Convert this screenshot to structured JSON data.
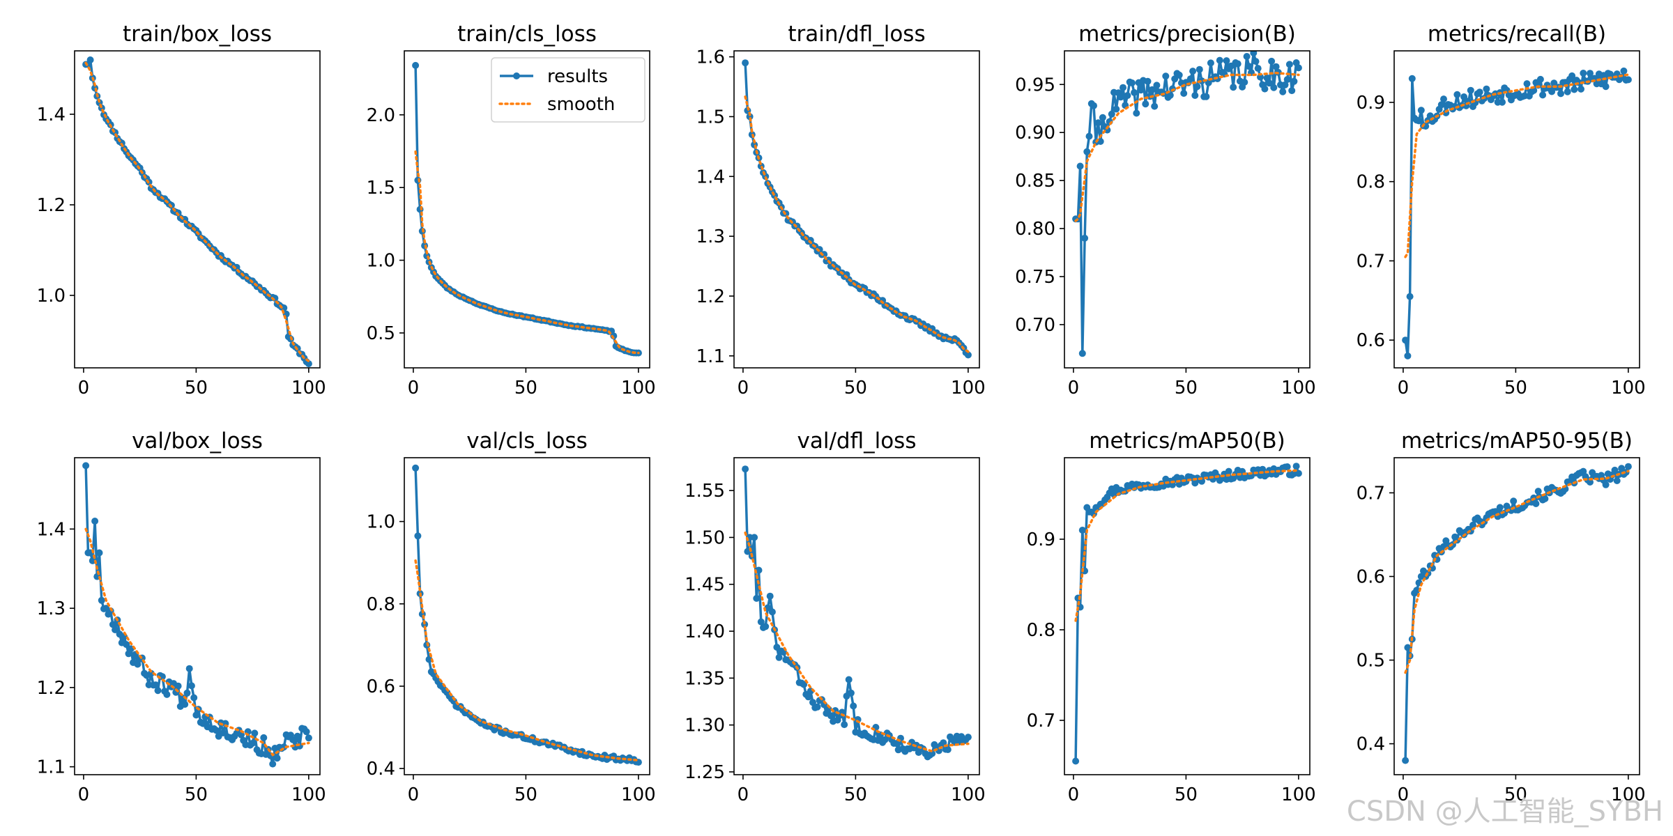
{
  "watermark": "CSDN @人工智能_SYBH",
  "colors": {
    "results": "#1f77b4",
    "smooth": "#ff7f0e"
  },
  "legend": {
    "results": "results",
    "smooth": "smooth",
    "location": "upper-right",
    "panel": 1
  },
  "chart_data": [
    {
      "type": "line",
      "title": "train/box_loss",
      "xlim": [
        -4,
        105
      ],
      "ylim": [
        0.84,
        1.54
      ],
      "xticks": [
        0,
        50,
        100
      ],
      "yticks": [
        1.0,
        1.2,
        1.4
      ],
      "anchors": [
        [
          1,
          1.51
        ],
        [
          2,
          1.51
        ],
        [
          3,
          1.52
        ],
        [
          4,
          1.48
        ],
        [
          6,
          1.44
        ],
        [
          10,
          1.39
        ],
        [
          15,
          1.35
        ],
        [
          20,
          1.31
        ],
        [
          25,
          1.28
        ],
        [
          30,
          1.24
        ],
        [
          40,
          1.19
        ],
        [
          50,
          1.14
        ],
        [
          60,
          1.09
        ],
        [
          70,
          1.05
        ],
        [
          80,
          1.01
        ],
        [
          85,
          0.99
        ],
        [
          89,
          0.97
        ],
        [
          90,
          0.96
        ],
        [
          91,
          0.91
        ],
        [
          93,
          0.89
        ],
        [
          96,
          0.875
        ],
        [
          100,
          0.85
        ]
      ],
      "noise": 0.004,
      "seed": 11
    },
    {
      "type": "line",
      "title": "train/cls_loss",
      "xlim": [
        -4,
        105
      ],
      "ylim": [
        0.26,
        2.44
      ],
      "xticks": [
        0,
        50,
        100
      ],
      "yticks": [
        0.5,
        1.0,
        1.5,
        2.0
      ],
      "anchors": [
        [
          1,
          2.34
        ],
        [
          2,
          1.55
        ],
        [
          3,
          1.35
        ],
        [
          4,
          1.2
        ],
        [
          5,
          1.1
        ],
        [
          6,
          1.03
        ],
        [
          8,
          0.95
        ],
        [
          10,
          0.89
        ],
        [
          15,
          0.81
        ],
        [
          20,
          0.76
        ],
        [
          30,
          0.69
        ],
        [
          40,
          0.64
        ],
        [
          50,
          0.61
        ],
        [
          60,
          0.58
        ],
        [
          70,
          0.55
        ],
        [
          80,
          0.53
        ],
        [
          88,
          0.51
        ],
        [
          89,
          0.48
        ],
        [
          90,
          0.41
        ],
        [
          92,
          0.39
        ],
        [
          96,
          0.37
        ],
        [
          100,
          0.36
        ]
      ],
      "noise": 0.003,
      "seed": 23
    },
    {
      "type": "line",
      "title": "train/dfl_loss",
      "xlim": [
        -4,
        105
      ],
      "ylim": [
        1.08,
        1.61
      ],
      "xticks": [
        0,
        50,
        100
      ],
      "yticks": [
        1.1,
        1.2,
        1.3,
        1.4,
        1.5,
        1.6
      ],
      "anchors": [
        [
          1,
          1.59
        ],
        [
          2,
          1.51
        ],
        [
          3,
          1.5
        ],
        [
          4,
          1.47
        ],
        [
          6,
          1.44
        ],
        [
          10,
          1.4
        ],
        [
          15,
          1.36
        ],
        [
          20,
          1.33
        ],
        [
          30,
          1.29
        ],
        [
          40,
          1.25
        ],
        [
          50,
          1.22
        ],
        [
          60,
          1.195
        ],
        [
          70,
          1.17
        ],
        [
          80,
          1.15
        ],
        [
          90,
          1.13
        ],
        [
          95,
          1.125
        ],
        [
          100,
          1.105
        ]
      ],
      "noise": 0.004,
      "seed": 37
    },
    {
      "type": "line",
      "title": "metrics/precision(B)",
      "xlim": [
        -4,
        105
      ],
      "ylim": [
        0.655,
        0.985
      ],
      "xticks": [
        0,
        50,
        100
      ],
      "yticks": [
        0.7,
        0.75,
        0.8,
        0.85,
        0.9,
        0.95
      ],
      "anchors": [
        [
          1,
          0.81
        ],
        [
          2,
          0.81
        ],
        [
          3,
          0.865
        ],
        [
          4,
          0.67
        ],
        [
          5,
          0.79
        ],
        [
          6,
          0.88
        ],
        [
          8,
          0.93
        ],
        [
          10,
          0.89
        ],
        [
          15,
          0.92
        ],
        [
          20,
          0.93
        ],
        [
          30,
          0.94
        ],
        [
          40,
          0.945
        ],
        [
          50,
          0.95
        ],
        [
          60,
          0.955
        ],
        [
          70,
          0.96
        ],
        [
          80,
          0.965
        ],
        [
          90,
          0.96
        ],
        [
          100,
          0.96
        ]
      ],
      "noise": 0.018,
      "seed": 41,
      "smooth_anchors": [
        [
          1,
          0.808
        ],
        [
          2,
          0.81
        ],
        [
          3,
          0.815
        ],
        [
          6,
          0.87
        ],
        [
          10,
          0.89
        ],
        [
          20,
          0.92
        ],
        [
          30,
          0.935
        ],
        [
          40,
          0.94
        ],
        [
          50,
          0.95
        ],
        [
          60,
          0.955
        ],
        [
          70,
          0.96
        ],
        [
          80,
          0.96
        ],
        [
          90,
          0.962
        ],
        [
          100,
          0.96
        ]
      ]
    },
    {
      "type": "line",
      "title": "metrics/recall(B)",
      "xlim": [
        -4,
        105
      ],
      "ylim": [
        0.565,
        0.965
      ],
      "xticks": [
        0,
        50,
        100
      ],
      "yticks": [
        0.6,
        0.7,
        0.8,
        0.9
      ],
      "anchors": [
        [
          1,
          0.6
        ],
        [
          2,
          0.58
        ],
        [
          3,
          0.655
        ],
        [
          4,
          0.93
        ],
        [
          5,
          0.88
        ],
        [
          8,
          0.89
        ],
        [
          10,
          0.87
        ],
        [
          15,
          0.89
        ],
        [
          20,
          0.9
        ],
        [
          30,
          0.905
        ],
        [
          40,
          0.91
        ],
        [
          50,
          0.915
        ],
        [
          60,
          0.92
        ],
        [
          70,
          0.92
        ],
        [
          80,
          0.925
        ],
        [
          90,
          0.93
        ],
        [
          100,
          0.935
        ]
      ],
      "noise": 0.012,
      "seed": 53,
      "smooth_anchors": [
        [
          1,
          0.705
        ],
        [
          2,
          0.71
        ],
        [
          4,
          0.8
        ],
        [
          6,
          0.86
        ],
        [
          10,
          0.875
        ],
        [
          20,
          0.89
        ],
        [
          30,
          0.9
        ],
        [
          40,
          0.91
        ],
        [
          50,
          0.915
        ],
        [
          60,
          0.92
        ],
        [
          70,
          0.92
        ],
        [
          80,
          0.925
        ],
        [
          90,
          0.93
        ],
        [
          100,
          0.935
        ]
      ]
    },
    {
      "type": "line",
      "title": "val/box_loss",
      "xlim": [
        -4,
        105
      ],
      "ylim": [
        1.09,
        1.49
      ],
      "xticks": [
        0,
        50,
        100
      ],
      "yticks": [
        1.1,
        1.2,
        1.3,
        1.4
      ],
      "anchors": [
        [
          1,
          1.48
        ],
        [
          2,
          1.37
        ],
        [
          3,
          1.37
        ],
        [
          4,
          1.36
        ],
        [
          5,
          1.41
        ],
        [
          6,
          1.34
        ],
        [
          7,
          1.37
        ],
        [
          8,
          1.31
        ],
        [
          10,
          1.3
        ],
        [
          15,
          1.28
        ],
        [
          20,
          1.25
        ],
        [
          25,
          1.23
        ],
        [
          30,
          1.21
        ],
        [
          40,
          1.2
        ],
        [
          45,
          1.18
        ],
        [
          47,
          1.23
        ],
        [
          50,
          1.17
        ],
        [
          55,
          1.16
        ],
        [
          60,
          1.15
        ],
        [
          70,
          1.14
        ],
        [
          80,
          1.125
        ],
        [
          83,
          1.105
        ],
        [
          86,
          1.12
        ],
        [
          90,
          1.13
        ],
        [
          96,
          1.135
        ],
        [
          98,
          1.14
        ],
        [
          100,
          1.13
        ]
      ],
      "noise": 0.012,
      "seed": 67,
      "smooth_anchors": [
        [
          1,
          1.4
        ],
        [
          3,
          1.385
        ],
        [
          6,
          1.35
        ],
        [
          10,
          1.31
        ],
        [
          20,
          1.26
        ],
        [
          30,
          1.22
        ],
        [
          40,
          1.2
        ],
        [
          50,
          1.175
        ],
        [
          60,
          1.155
        ],
        [
          70,
          1.145
        ],
        [
          80,
          1.13
        ],
        [
          84,
          1.115
        ],
        [
          90,
          1.125
        ],
        [
          100,
          1.13
        ]
      ]
    },
    {
      "type": "line",
      "title": "val/cls_loss",
      "xlim": [
        -4,
        105
      ],
      "ylim": [
        0.385,
        1.155
      ],
      "xticks": [
        0,
        50,
        100
      ],
      "yticks": [
        0.4,
        0.6,
        0.8,
        1.0
      ],
      "anchors": [
        [
          1,
          1.13
        ],
        [
          2,
          0.965
        ],
        [
          3,
          0.825
        ],
        [
          4,
          0.775
        ],
        [
          5,
          0.75
        ],
        [
          6,
          0.7
        ],
        [
          8,
          0.635
        ],
        [
          10,
          0.62
        ],
        [
          15,
          0.58
        ],
        [
          20,
          0.55
        ],
        [
          30,
          0.51
        ],
        [
          40,
          0.49
        ],
        [
          50,
          0.475
        ],
        [
          60,
          0.46
        ],
        [
          70,
          0.445
        ],
        [
          80,
          0.43
        ],
        [
          90,
          0.425
        ],
        [
          100,
          0.42
        ]
      ],
      "noise": 0.005,
      "seed": 71,
      "smooth_anchors": [
        [
          1,
          0.905
        ],
        [
          2,
          0.87
        ],
        [
          4,
          0.79
        ],
        [
          6,
          0.71
        ],
        [
          10,
          0.63
        ],
        [
          20,
          0.555
        ],
        [
          30,
          0.515
        ],
        [
          40,
          0.495
        ],
        [
          50,
          0.48
        ],
        [
          60,
          0.462
        ],
        [
          70,
          0.447
        ],
        [
          80,
          0.432
        ],
        [
          90,
          0.425
        ],
        [
          100,
          0.42
        ]
      ]
    },
    {
      "type": "line",
      "title": "val/dfl_loss",
      "xlim": [
        -4,
        105
      ],
      "ylim": [
        1.247,
        1.585
      ],
      "xticks": [
        0,
        50,
        100
      ],
      "yticks": [
        1.25,
        1.3,
        1.35,
        1.4,
        1.45,
        1.5,
        1.55
      ],
      "anchors": [
        [
          1,
          1.573
        ],
        [
          2,
          1.485
        ],
        [
          3,
          1.5
        ],
        [
          4,
          1.48
        ],
        [
          5,
          1.5
        ],
        [
          6,
          1.435
        ],
        [
          7,
          1.465
        ],
        [
          8,
          1.41
        ],
        [
          10,
          1.405
        ],
        [
          12,
          1.435
        ],
        [
          15,
          1.38
        ],
        [
          20,
          1.37
        ],
        [
          25,
          1.35
        ],
        [
          30,
          1.33
        ],
        [
          40,
          1.31
        ],
        [
          45,
          1.305
        ],
        [
          47,
          1.35
        ],
        [
          50,
          1.3
        ],
        [
          60,
          1.29
        ],
        [
          70,
          1.28
        ],
        [
          80,
          1.27
        ],
        [
          82,
          1.265
        ],
        [
          86,
          1.275
        ],
        [
          90,
          1.28
        ],
        [
          96,
          1.285
        ],
        [
          100,
          1.28
        ]
      ],
      "noise": 0.008,
      "seed": 83,
      "smooth_anchors": [
        [
          1,
          1.505
        ],
        [
          3,
          1.49
        ],
        [
          6,
          1.46
        ],
        [
          10,
          1.42
        ],
        [
          20,
          1.375
        ],
        [
          30,
          1.34
        ],
        [
          40,
          1.315
        ],
        [
          50,
          1.305
        ],
        [
          60,
          1.293
        ],
        [
          70,
          1.283
        ],
        [
          80,
          1.275
        ],
        [
          84,
          1.272
        ],
        [
          90,
          1.278
        ],
        [
          100,
          1.28
        ]
      ]
    },
    {
      "type": "line",
      "title": "metrics/mAP50(B)",
      "xlim": [
        -4,
        105
      ],
      "ylim": [
        0.64,
        0.99
      ],
      "xticks": [
        0,
        50,
        100
      ],
      "yticks": [
        0.7,
        0.8,
        0.9
      ],
      "anchors": [
        [
          1,
          0.655
        ],
        [
          2,
          0.835
        ],
        [
          3,
          0.825
        ],
        [
          4,
          0.91
        ],
        [
          5,
          0.865
        ],
        [
          6,
          0.935
        ],
        [
          8,
          0.93
        ],
        [
          10,
          0.935
        ],
        [
          15,
          0.95
        ],
        [
          20,
          0.955
        ],
        [
          30,
          0.96
        ],
        [
          40,
          0.963
        ],
        [
          50,
          0.965
        ],
        [
          60,
          0.968
        ],
        [
          70,
          0.971
        ],
        [
          80,
          0.973
        ],
        [
          90,
          0.975
        ],
        [
          100,
          0.976
        ]
      ],
      "noise": 0.005,
      "seed": 97,
      "smooth_anchors": [
        [
          1,
          0.81
        ],
        [
          3,
          0.84
        ],
        [
          6,
          0.91
        ],
        [
          10,
          0.93
        ],
        [
          20,
          0.95
        ],
        [
          30,
          0.958
        ],
        [
          40,
          0.962
        ],
        [
          50,
          0.965
        ],
        [
          60,
          0.968
        ],
        [
          70,
          0.971
        ],
        [
          80,
          0.973
        ],
        [
          90,
          0.975
        ],
        [
          100,
          0.976
        ]
      ]
    },
    {
      "type": "line",
      "title": "metrics/mAP50-95(B)",
      "xlim": [
        -4,
        105
      ],
      "ylim": [
        0.363,
        0.742
      ],
      "xticks": [
        0,
        50,
        100
      ],
      "yticks": [
        0.4,
        0.5,
        0.6,
        0.7
      ],
      "anchors": [
        [
          1,
          0.38
        ],
        [
          2,
          0.515
        ],
        [
          3,
          0.505
        ],
        [
          4,
          0.525
        ],
        [
          5,
          0.58
        ],
        [
          8,
          0.6
        ],
        [
          10,
          0.6
        ],
        [
          15,
          0.625
        ],
        [
          20,
          0.64
        ],
        [
          30,
          0.66
        ],
        [
          40,
          0.675
        ],
        [
          50,
          0.685
        ],
        [
          60,
          0.695
        ],
        [
          70,
          0.705
        ],
        [
          80,
          0.72
        ],
        [
          90,
          0.715
        ],
        [
          100,
          0.728
        ]
      ],
      "noise": 0.007,
      "seed": 101,
      "smooth_anchors": [
        [
          1,
          0.485
        ],
        [
          3,
          0.5
        ],
        [
          5,
          0.56
        ],
        [
          8,
          0.59
        ],
        [
          15,
          0.625
        ],
        [
          30,
          0.655
        ],
        [
          40,
          0.672
        ],
        [
          50,
          0.683
        ],
        [
          60,
          0.695
        ],
        [
          70,
          0.706
        ],
        [
          80,
          0.716
        ],
        [
          90,
          0.717
        ],
        [
          100,
          0.726
        ]
      ]
    }
  ]
}
